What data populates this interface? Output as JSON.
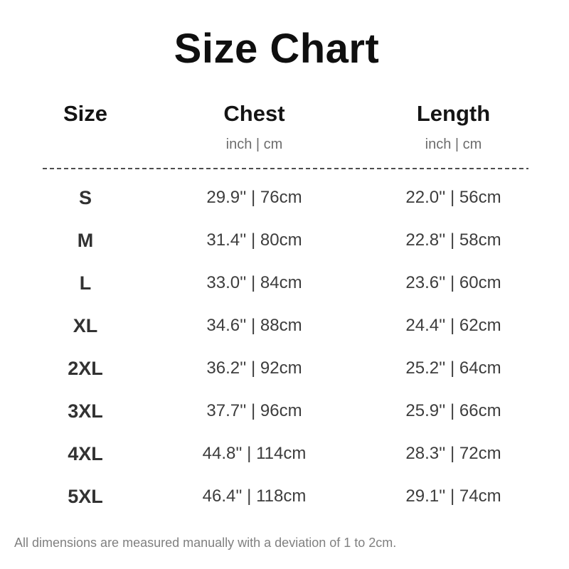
{
  "title": "Size Chart",
  "table": {
    "columns": [
      {
        "label": "Size",
        "unit": ""
      },
      {
        "label": "Chest",
        "unit": "inch | cm"
      },
      {
        "label": "Length",
        "unit": "inch | cm"
      }
    ],
    "rows": [
      {
        "size": "S",
        "chest": "29.9'' | 76cm",
        "length": "22.0'' | 56cm"
      },
      {
        "size": "M",
        "chest": "31.4'' | 80cm",
        "length": "22.8'' | 58cm"
      },
      {
        "size": "L",
        "chest": "33.0'' | 84cm",
        "length": "23.6'' | 60cm"
      },
      {
        "size": "XL",
        "chest": "34.6'' | 88cm",
        "length": "24.4'' | 62cm"
      },
      {
        "size": "2XL",
        "chest": "36.2'' | 92cm",
        "length": "25.2'' | 64cm"
      },
      {
        "size": "3XL",
        "chest": "37.7'' | 96cm",
        "length": "25.9'' | 66cm"
      },
      {
        "size": "4XL",
        "chest": "44.8'' | 114cm",
        "length": "28.3'' | 72cm"
      },
      {
        "size": "5XL",
        "chest": "46.4'' | 118cm",
        "length": "29.1'' | 74cm"
      }
    ]
  },
  "footnote": "All dimensions are measured manually with a deviation of 1 to 2cm.",
  "colors": {
    "background": "#ffffff",
    "title_text": "#0f0f0f",
    "header_text": "#141414",
    "unit_text": "#6d6d6d",
    "data_text": "#3d3d3d",
    "divider": "#4e4e4e",
    "footnote_text": "#808080"
  },
  "chart_data": {
    "type": "table",
    "title": "Size Chart",
    "columns": [
      "Size",
      "Chest (inch)",
      "Chest (cm)",
      "Length (inch)",
      "Length (cm)"
    ],
    "rows": [
      [
        "S",
        29.9,
        76,
        22.0,
        56
      ],
      [
        "M",
        31.4,
        80,
        22.8,
        58
      ],
      [
        "L",
        33.0,
        84,
        23.6,
        60
      ],
      [
        "XL",
        34.6,
        88,
        24.4,
        62
      ],
      [
        "2XL",
        36.2,
        92,
        25.2,
        64
      ],
      [
        "3XL",
        37.7,
        96,
        25.9,
        66
      ],
      [
        "4XL",
        44.8,
        114,
        28.3,
        72
      ],
      [
        "5XL",
        46.4,
        118,
        29.1,
        74
      ]
    ],
    "footnote": "All dimensions are measured manually with a deviation of 1 to 2cm."
  }
}
